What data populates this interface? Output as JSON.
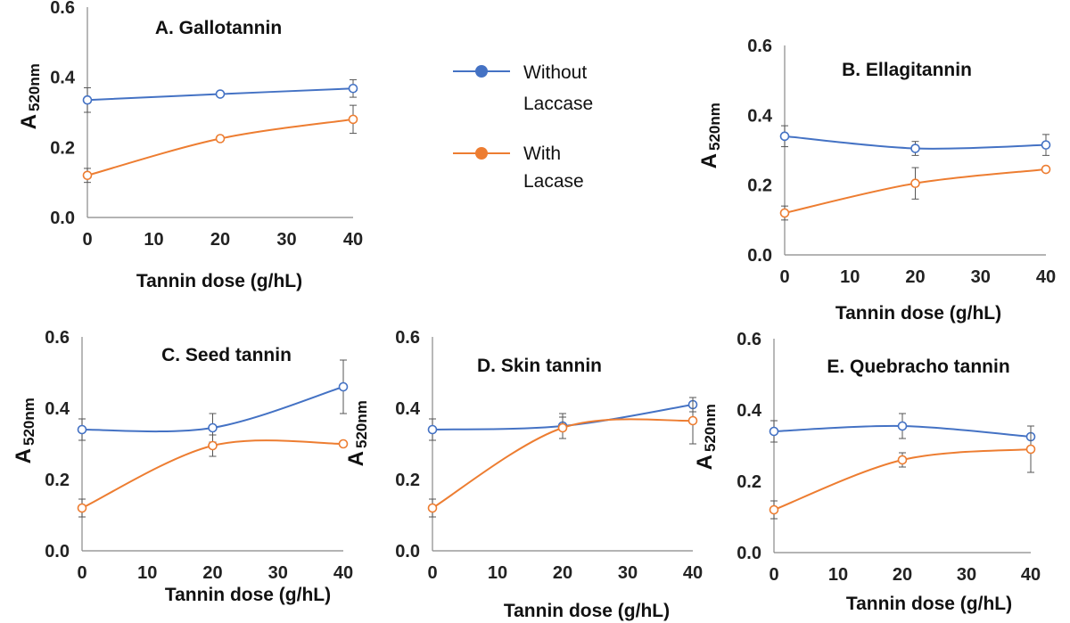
{
  "legend": {
    "items": [
      {
        "label_line1": "Without",
        "label_line2": "Laccase",
        "color": "#4472C4"
      },
      {
        "label_line1": "With",
        "label_line2": "Lacase",
        "color": "#ED7D31"
      }
    ]
  },
  "chart_data": [
    {
      "id": "A",
      "type": "line",
      "title": "A. Gallotannin",
      "xlabel": "Tannin dose (g/hL)",
      "ylabel_main": "A",
      "ylabel_sub": "520nm",
      "x": [
        0,
        20,
        40
      ],
      "xticks": [
        "0",
        "10",
        "20",
        "30",
        "40"
      ],
      "xlim": [
        0,
        40
      ],
      "yticks": [
        "0.0",
        "0.2",
        "0.4",
        "0.6"
      ],
      "ylim": [
        0,
        0.6
      ],
      "grid": false,
      "series": [
        {
          "name": "Without Laccase",
          "color": "#4472C4",
          "values": [
            0.335,
            0.352,
            0.368
          ],
          "errors": [
            0.035,
            0.005,
            0.025
          ]
        },
        {
          "name": "With Lacase",
          "color": "#ED7D31",
          "values": [
            0.12,
            0.225,
            0.28
          ],
          "errors": [
            0.02,
            0.008,
            0.04
          ]
        }
      ]
    },
    {
      "id": "B",
      "type": "line",
      "title": "B. Ellagitannin",
      "xlabel": "Tannin dose (g/hL)",
      "ylabel_main": "A",
      "ylabel_sub": "520nm",
      "x": [
        0,
        20,
        40
      ],
      "xticks": [
        "0",
        "10",
        "20",
        "30",
        "40"
      ],
      "xlim": [
        0,
        40
      ],
      "yticks": [
        "0.0",
        "0.2",
        "0.4",
        "0.6"
      ],
      "ylim": [
        0,
        0.6
      ],
      "grid": false,
      "series": [
        {
          "name": "Without Laccase",
          "color": "#4472C4",
          "values": [
            0.34,
            0.305,
            0.315
          ],
          "errors": [
            0.03,
            0.02,
            0.03
          ]
        },
        {
          "name": "With Lacase",
          "color": "#ED7D31",
          "values": [
            0.12,
            0.205,
            0.245
          ],
          "errors": [
            0.02,
            0.045,
            0.005
          ]
        }
      ]
    },
    {
      "id": "C",
      "type": "line",
      "title": "C. Seed tannin",
      "xlabel": "Tannin dose (g/hL)",
      "ylabel_main": "A",
      "ylabel_sub": "520nm",
      "x": [
        0,
        20,
        40
      ],
      "xticks": [
        "0",
        "10",
        "20",
        "30",
        "40"
      ],
      "xlim": [
        0,
        40
      ],
      "yticks": [
        "0.0",
        "0.2",
        "0.4",
        "0.6"
      ],
      "ylim": [
        0,
        0.6
      ],
      "grid": false,
      "series": [
        {
          "name": "Without Laccase",
          "color": "#4472C4",
          "values": [
            0.34,
            0.345,
            0.46
          ],
          "errors": [
            0.03,
            0.04,
            0.075
          ]
        },
        {
          "name": "With Lacase",
          "color": "#ED7D31",
          "values": [
            0.12,
            0.295,
            0.3
          ],
          "errors": [
            0.025,
            0.03,
            0.003
          ]
        }
      ]
    },
    {
      "id": "D",
      "type": "line",
      "title": "D. Skin tannin",
      "xlabel": "Tannin dose (g/hL)",
      "ylabel_main": "A",
      "ylabel_sub": "520nm",
      "x": [
        0,
        20,
        40
      ],
      "xticks": [
        "0",
        "10",
        "20",
        "30",
        "40"
      ],
      "xlim": [
        0,
        40
      ],
      "yticks": [
        "0.0",
        "0.2",
        "0.4",
        "0.6"
      ],
      "ylim": [
        0,
        0.6
      ],
      "grid": false,
      "series": [
        {
          "name": "Without Laccase",
          "color": "#4472C4",
          "values": [
            0.34,
            0.35,
            0.41
          ],
          "errors": [
            0.03,
            0.035,
            0.02
          ]
        },
        {
          "name": "With Lacase",
          "color": "#ED7D31",
          "values": [
            0.12,
            0.345,
            0.365
          ],
          "errors": [
            0.025,
            0.03,
            0.065
          ]
        }
      ]
    },
    {
      "id": "E",
      "type": "line",
      "title": "E. Quebracho tannin",
      "xlabel": "Tannin dose (g/hL)",
      "ylabel_main": "A",
      "ylabel_sub": "520nm",
      "x": [
        0,
        20,
        40
      ],
      "xticks": [
        "0",
        "10",
        "20",
        "30",
        "40"
      ],
      "xlim": [
        0,
        40
      ],
      "yticks": [
        "0.0",
        "0.2",
        "0.4",
        "0.6"
      ],
      "ylim": [
        0,
        0.6
      ],
      "grid": false,
      "series": [
        {
          "name": "Without Laccase",
          "color": "#4472C4",
          "values": [
            0.34,
            0.355,
            0.325
          ],
          "errors": [
            0.03,
            0.035,
            0.03
          ]
        },
        {
          "name": "With Lacase",
          "color": "#ED7D31",
          "values": [
            0.12,
            0.26,
            0.29
          ],
          "errors": [
            0.025,
            0.02,
            0.065
          ]
        }
      ]
    }
  ]
}
